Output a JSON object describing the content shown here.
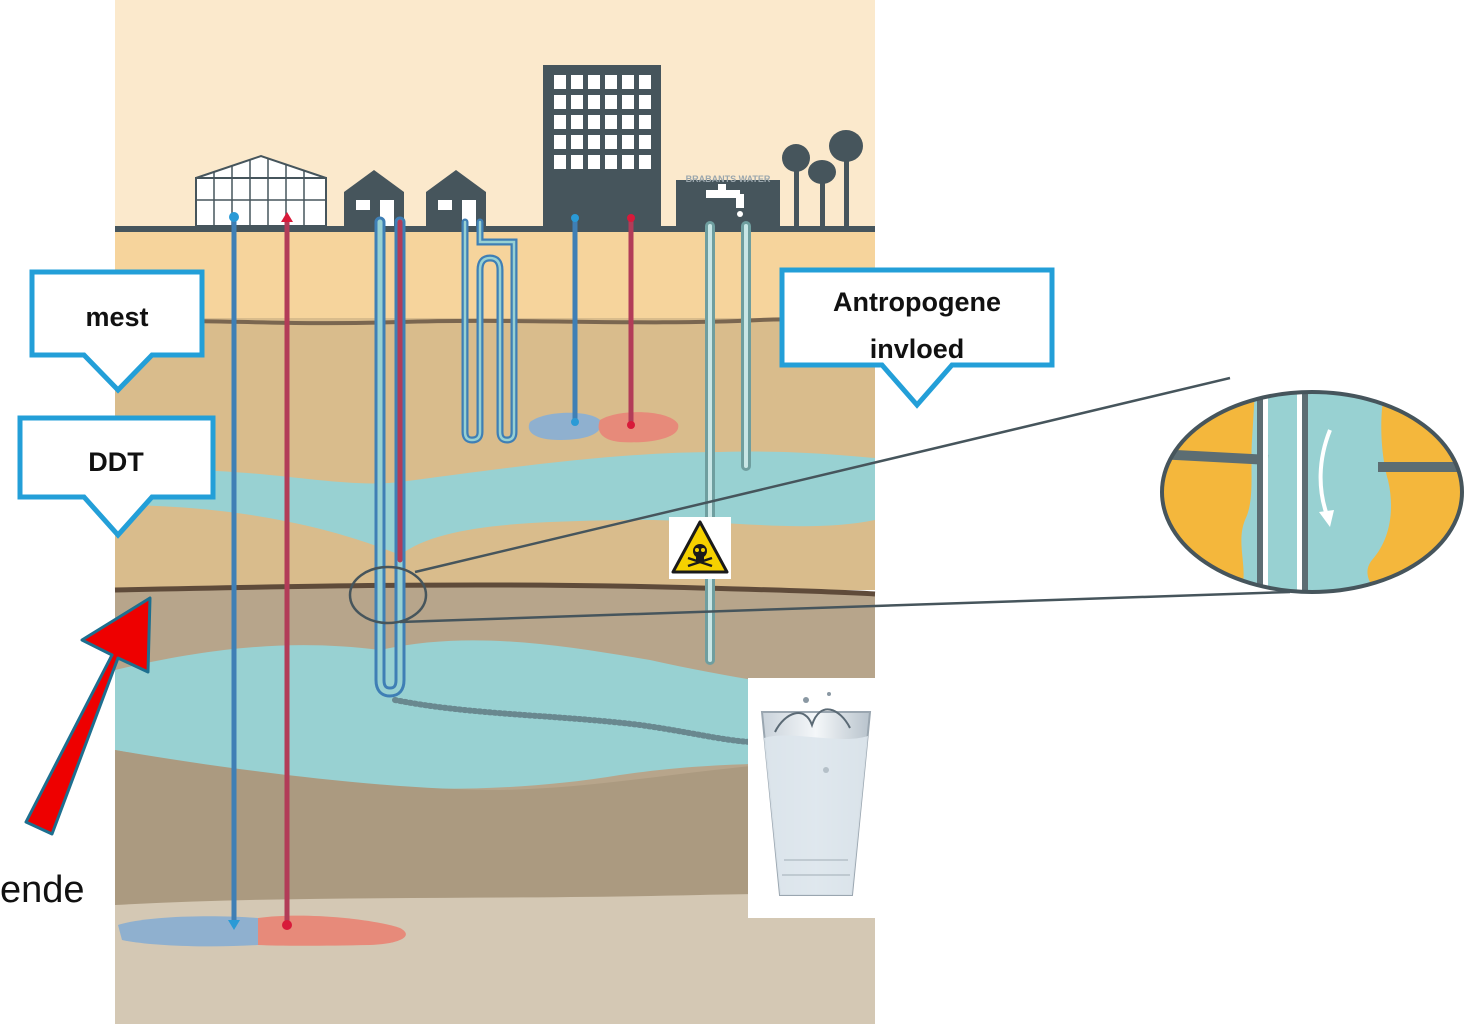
{
  "callouts": {
    "mest": "mest",
    "ddt": "DDT",
    "antropogene_line1": "Antropogene",
    "antropogene_line2": "invloed"
  },
  "signage": {
    "water_company": "BRABANTS WATER"
  },
  "left_label": "ende",
  "colors": {
    "sky": "#fbe9cc",
    "topsoil": "#f6d49c",
    "soil_layer": "#d9bc8c",
    "deep_soil": "#b7a58b",
    "base_soil": "#ab9a80",
    "bottom_soil": "#d4c8b4",
    "aquifer": "#98d1d2",
    "building": "#46555c",
    "pipe_blue": "#3f7fb5",
    "pipe_red": "#b23c58",
    "callout_border": "#239fd8",
    "arrow_red": "#ee0000",
    "arrow_outline": "#1d6f8f",
    "zoom_orange": "#f4b73c"
  }
}
